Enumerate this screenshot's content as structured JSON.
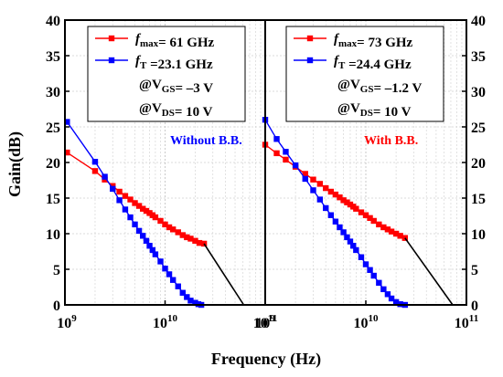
{
  "chart_data": {
    "type": "line",
    "xlabel": "Frequency (Hz)",
    "ylabel": "Gain(dB)",
    "x_scale": "log",
    "xlim": [
      1000000000.0,
      100000000000.0
    ],
    "ylim": [
      0,
      40
    ],
    "y_ticks": [
      "0",
      "5",
      "10",
      "15",
      "20",
      "25",
      "30",
      "35",
      "40"
    ],
    "x_tick_labels": [
      {
        "base": "10",
        "exp": "9"
      },
      {
        "base": "10",
        "exp": "10"
      },
      {
        "base": "10",
        "exp": "11"
      }
    ],
    "grid": true,
    "colors": {
      "fmax": "#ff0000",
      "ft": "#0000ff",
      "extrapolation": "#000000",
      "without": "#0000ff",
      "with": "#ff0000"
    },
    "panels": [
      {
        "note": "Without B.B.",
        "legend": {
          "fmax_var": "f",
          "fmax_sub": "max",
          "fmax_val": "= 61 GHz",
          "ft_var": "f",
          "ft_sub": "T",
          "ft_val": " =23.1 GHz",
          "vgs_pre": "@V",
          "vgs_sub": "GS",
          "vgs_val": "= –3 V",
          "vds_pre": "@V",
          "vds_sub": "DS",
          "vds_val": "= 10 V"
        },
        "series": [
          {
            "name": "fmax",
            "x": [
              1050000000.0,
              2000000000.0,
              2500000000.0,
              3000000000.0,
              3500000000.0,
              4000000000.0,
              4500000000.0,
              5000000000.0,
              5500000000.0,
              6000000000.0,
              6500000000.0,
              7000000000.0,
              7500000000.0,
              8000000000.0,
              9000000000.0,
              10000000000.0,
              11000000000.0,
              12000000000.0,
              13500000000.0,
              15000000000.0,
              16500000000.0,
              18000000000.0,
              20000000000.0,
              22000000000.0,
              24500000000.0
            ],
            "y": [
              21.4,
              18.8,
              17.6,
              16.7,
              15.9,
              15.3,
              14.8,
              14.3,
              13.9,
              13.5,
              13.2,
              12.9,
              12.6,
              12.3,
              11.8,
              11.3,
              10.9,
              10.6,
              10.2,
              9.8,
              9.5,
              9.3,
              9.0,
              8.7,
              8.6
            ]
          },
          {
            "name": "fT",
            "x": [
              1050000000.0,
              2000000000.0,
              2500000000.0,
              3000000000.0,
              3500000000.0,
              4000000000.0,
              4500000000.0,
              5000000000.0,
              5500000000.0,
              6000000000.0,
              6500000000.0,
              7000000000.0,
              7500000000.0,
              8000000000.0,
              9000000000.0,
              10000000000.0,
              11000000000.0,
              12000000000.0,
              13500000000.0,
              15000000000.0,
              16500000000.0,
              18000000000.0,
              20000000000.0,
              21500000000.0,
              23000000000.0
            ],
            "y": [
              25.7,
              20.1,
              18.0,
              16.3,
              14.7,
              13.4,
              12.3,
              11.3,
              10.4,
              9.7,
              9.0,
              8.3,
              7.7,
              7.1,
              6.1,
              5.1,
              4.3,
              3.5,
              2.6,
              1.7,
              1.1,
              0.6,
              0.3,
              0.1,
              0.0
            ]
          },
          {
            "name": "extrapolation",
            "x": [
              24500000000.0,
              61000000000.0
            ],
            "y": [
              8.6,
              0
            ]
          }
        ]
      },
      {
        "note": "With B.B.",
        "legend": {
          "fmax_var": "f",
          "fmax_sub": "max",
          "fmax_val": "= 73 GHz",
          "ft_var": "f",
          "ft_sub": "T",
          "ft_val": " =24.4 GHz",
          "vgs_pre": "@V",
          "vgs_sub": "GS",
          "vgs_val": "= –1.2 V",
          "vds_pre": "@V",
          "vds_sub": "DS",
          "vds_val": "= 10 V"
        },
        "series": [
          {
            "name": "fmax",
            "x": [
              1000000000.0,
              1300000000.0,
              1600000000.0,
              2000000000.0,
              2500000000.0,
              3000000000.0,
              3500000000.0,
              4000000000.0,
              4500000000.0,
              5000000000.0,
              5500000000.0,
              6000000000.0,
              6500000000.0,
              7000000000.0,
              7500000000.0,
              8000000000.0,
              9000000000.0,
              10000000000.0,
              11000000000.0,
              12000000000.0,
              13500000000.0,
              15000000000.0,
              16500000000.0,
              18000000000.0,
              20000000000.0,
              22000000000.0,
              24500000000.0
            ],
            "y": [
              22.5,
              21.3,
              20.4,
              19.4,
              18.4,
              17.6,
              17.0,
              16.4,
              15.9,
              15.5,
              15.1,
              14.7,
              14.4,
              14.1,
              13.8,
              13.5,
              13.0,
              12.6,
              12.2,
              11.8,
              11.3,
              10.9,
              10.6,
              10.3,
              10.0,
              9.7,
              9.4
            ]
          },
          {
            "name": "fT",
            "x": [
              1000000000.0,
              1300000000.0,
              1600000000.0,
              2000000000.0,
              2500000000.0,
              3000000000.0,
              3500000000.0,
              4000000000.0,
              4500000000.0,
              5000000000.0,
              5500000000.0,
              6000000000.0,
              6500000000.0,
              7000000000.0,
              7500000000.0,
              8000000000.0,
              9000000000.0,
              10000000000.0,
              11000000000.0,
              12000000000.0,
              13500000000.0,
              15000000000.0,
              16500000000.0,
              18000000000.0,
              20000000000.0,
              22000000000.0,
              24500000000.0
            ],
            "y": [
              26.0,
              23.3,
              21.5,
              19.6,
              17.7,
              16.1,
              14.8,
              13.6,
              12.6,
              11.7,
              10.9,
              10.2,
              9.5,
              8.9,
              8.3,
              7.7,
              6.7,
              5.7,
              4.9,
              4.1,
              3.1,
              2.2,
              1.5,
              0.9,
              0.4,
              0.1,
              0.0
            ]
          },
          {
            "name": "extrapolation",
            "x": [
              24500000000.0,
              73000000000.0
            ],
            "y": [
              9.4,
              0
            ]
          }
        ]
      }
    ]
  }
}
